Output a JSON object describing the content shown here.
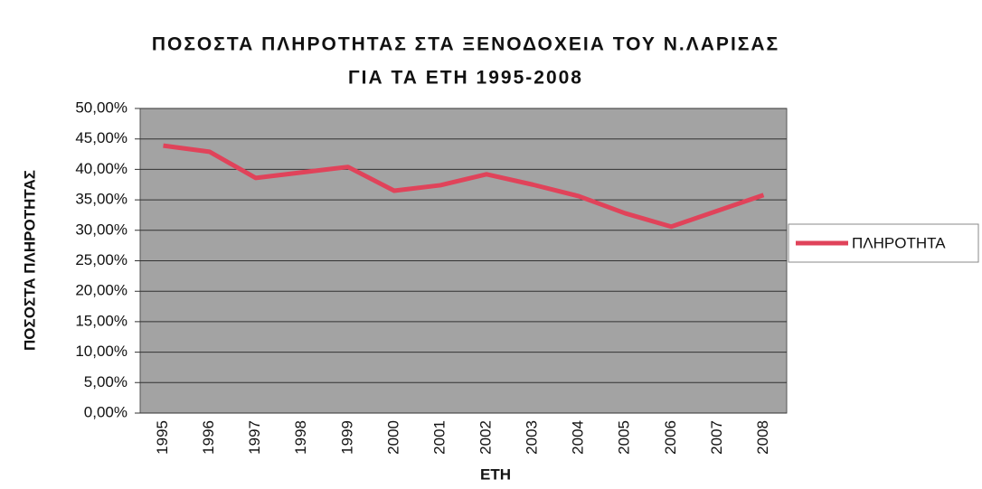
{
  "chart_data": {
    "type": "line",
    "title": [
      "ΠΟΣΟΣΤΑ ΠΛΗΡΟΤΗΤΑΣ ΣΤΑ ΞΕΝΟΔΟΧΕΙΑ ΤΟΥ Ν.ΛΑΡΙΣΑΣ",
      "ΓΙΑ ΤΑ ΕΤΗ 1995-2008"
    ],
    "x_label": "ΕΤΗ",
    "y_label": "ΠΟΣΟΣΤΑ ΠΛΗΡΟΤΗΤΑΣ",
    "categories": [
      "1995",
      "1996",
      "1997",
      "1998",
      "1999",
      "2000",
      "2001",
      "2002",
      "2003",
      "2004",
      "2005",
      "2006",
      "2007",
      "2008"
    ],
    "series": [
      {
        "name": "ΠΛΗΡΟΤΗΤΑ",
        "color": "#e0435a",
        "values": [
          43.9,
          42.9,
          38.6,
          39.5,
          40.4,
          36.5,
          37.4,
          39.2,
          37.5,
          35.6,
          32.8,
          30.6,
          33.2,
          35.8
        ]
      }
    ],
    "ylim": [
      0,
      50
    ],
    "yticks": [
      {
        "value": 0,
        "label": "0,00%"
      },
      {
        "value": 5,
        "label": "5,00%"
      },
      {
        "value": 10,
        "label": "10,00%"
      },
      {
        "value": 15,
        "label": "15,00%"
      },
      {
        "value": 20,
        "label": "20,00%"
      },
      {
        "value": 25,
        "label": "25,00%"
      },
      {
        "value": 30,
        "label": "30,00%"
      },
      {
        "value": 35,
        "label": "35,00%"
      },
      {
        "value": 40,
        "label": "40,00%"
      },
      {
        "value": 45,
        "label": "45,00%"
      },
      {
        "value": 50,
        "label": "50,00%"
      }
    ],
    "grid": true,
    "legend": "right"
  }
}
